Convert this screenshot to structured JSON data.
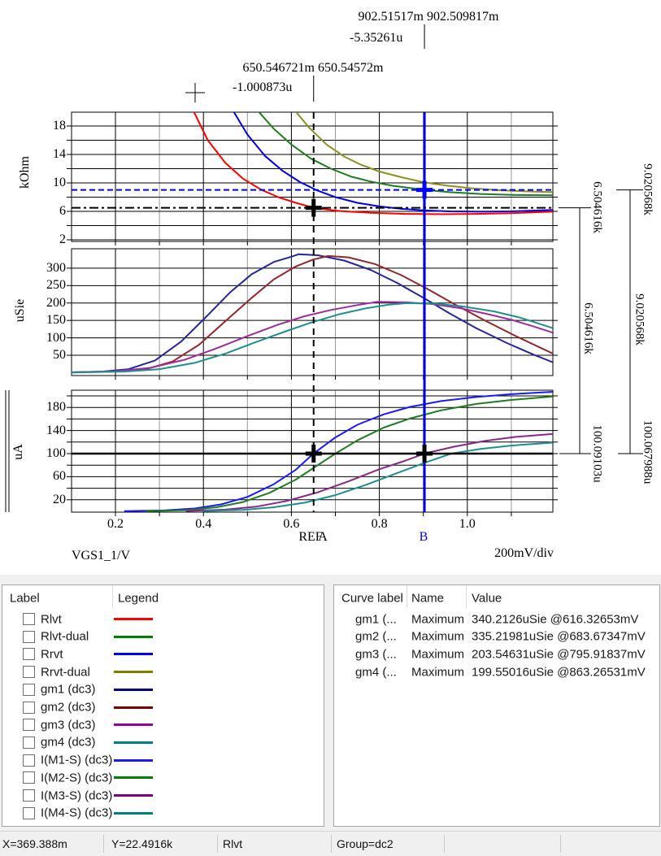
{
  "cursor_annotations": {
    "b_x_values": "902.51517m 902.509817m",
    "b_x_delta": "-5.35261u",
    "ref_x_values": "650.546721m 650.54572m",
    "ref_x_delta": "-1.000873u"
  },
  "cursor_labels": {
    "ref": "REF",
    "a": "A",
    "b": "B"
  },
  "axis_readouts": [
    "6.504616k",
    "9.020568k",
    "6.504616k",
    "9.020568k",
    "100.09103u",
    "100.067988u"
  ],
  "x_axis": {
    "label": "VGS1_1/V",
    "per_division": "200mV/div",
    "ticks": [
      "0.2",
      "0.4",
      "0.6",
      "0.8",
      "1.0"
    ]
  },
  "cursors": {
    "ref_x": 0.650546,
    "b_x": 0.902515,
    "top_ref_y": 6.504616,
    "top_b_y": 9.020568,
    "bottom_y": 100.08
  },
  "chart_data": [
    {
      "type": "line",
      "ylabel": "kOhm",
      "yticks": [
        "18",
        "14",
        "10",
        "6",
        "2"
      ],
      "ylim": [
        1.8,
        20.2
      ],
      "xlim": [
        0.1,
        1.194
      ],
      "grid": "on",
      "series": [
        {
          "name": "Rlvt",
          "color": "#ff0000",
          "points": [
            [
              0.375,
              20.4
            ],
            [
              0.41,
              16
            ],
            [
              0.45,
              12.8
            ],
            [
              0.49,
              10.6
            ],
            [
              0.53,
              9.1
            ],
            [
              0.57,
              8.0
            ],
            [
              0.61,
              7.2
            ],
            [
              0.6505,
              6.5
            ],
            [
              0.71,
              6.05
            ],
            [
              0.78,
              5.8
            ],
            [
              0.86,
              5.65
            ],
            [
              0.94,
              5.6
            ],
            [
              1.02,
              5.65
            ],
            [
              1.1,
              5.75
            ],
            [
              1.194,
              5.95
            ]
          ]
        },
        {
          "name": "Rrvt",
          "color": "#0000ee",
          "points": [
            [
              0.465,
              20.4
            ],
            [
              0.5,
              16.8
            ],
            [
              0.54,
              13.8
            ],
            [
              0.58,
              11.7
            ],
            [
              0.62,
              10.1
            ],
            [
              0.66,
              8.9
            ],
            [
              0.7,
              8.0
            ],
            [
              0.75,
              7.2
            ],
            [
              0.8,
              6.7
            ],
            [
              0.85,
              6.35
            ],
            [
              0.9,
              6.15
            ],
            [
              0.96,
              6.0
            ],
            [
              1.03,
              5.95
            ],
            [
              1.1,
              6.0
            ],
            [
              1.194,
              6.2
            ]
          ]
        },
        {
          "name": "Rlvt-dual",
          "color": "#1e7d1e",
          "points": [
            [
              0.52,
              20.4
            ],
            [
              0.56,
              17.6
            ],
            [
              0.6,
              15.4
            ],
            [
              0.645,
              13.4
            ],
            [
              0.69,
              12.0
            ],
            [
              0.735,
              10.9
            ],
            [
              0.78,
              10.2
            ],
            [
              0.83,
              9.6
            ],
            [
              0.88,
              9.2
            ],
            [
              0.9025,
              9.02
            ],
            [
              0.96,
              8.7
            ],
            [
              1.03,
              8.45
            ],
            [
              1.11,
              8.3
            ],
            [
              1.194,
              8.25
            ]
          ]
        },
        {
          "name": "Rrvt-dual",
          "color": "#8f8f1e",
          "points": [
            [
              0.605,
              20.4
            ],
            [
              0.64,
              17.8
            ],
            [
              0.68,
              15.4
            ],
            [
              0.72,
              13.7
            ],
            [
              0.76,
              12.5
            ],
            [
              0.8,
              11.6
            ],
            [
              0.85,
              10.8
            ],
            [
              0.9,
              10.1
            ],
            [
              0.95,
              9.65
            ],
            [
              1.01,
              9.25
            ],
            [
              1.08,
              8.95
            ],
            [
              1.14,
              8.8
            ],
            [
              1.194,
              8.7
            ]
          ]
        }
      ]
    },
    {
      "type": "line",
      "ylabel": "uSie",
      "yticks": [
        "300",
        "250",
        "200",
        "150",
        "100",
        "50"
      ],
      "ylim": [
        0,
        365
      ],
      "xlim": [
        0.1,
        1.194
      ],
      "grid": "on",
      "series": [
        {
          "name": "gm1 (dc3)",
          "color": "#26269c",
          "points": [
            [
              0.1,
              1
            ],
            [
              0.17,
              3
            ],
            [
              0.23,
              10
            ],
            [
              0.29,
              35
            ],
            [
              0.35,
              90
            ],
            [
              0.41,
              165
            ],
            [
              0.46,
              230
            ],
            [
              0.51,
              283
            ],
            [
              0.56,
              318
            ],
            [
              0.6,
              333
            ],
            [
              0.616,
              340
            ],
            [
              0.66,
              337
            ],
            [
              0.72,
              322
            ],
            [
              0.78,
              295
            ],
            [
              0.84,
              258
            ],
            [
              0.9,
              215
            ],
            [
              0.96,
              170
            ],
            [
              1.02,
              128
            ],
            [
              1.09,
              85
            ],
            [
              1.15,
              52
            ],
            [
              1.194,
              30
            ]
          ]
        },
        {
          "name": "gm2 (dc3)",
          "color": "#96262a",
          "points": [
            [
              0.1,
              1
            ],
            [
              0.2,
              3
            ],
            [
              0.27,
              10
            ],
            [
              0.33,
              32
            ],
            [
              0.39,
              80
            ],
            [
              0.45,
              148
            ],
            [
              0.51,
              215
            ],
            [
              0.56,
              268
            ],
            [
              0.61,
              305
            ],
            [
              0.65,
              325
            ],
            [
              0.684,
              335
            ],
            [
              0.73,
              331
            ],
            [
              0.79,
              312
            ],
            [
              0.85,
              280
            ],
            [
              0.91,
              240
            ],
            [
              0.97,
              197
            ],
            [
              1.04,
              150
            ],
            [
              1.11,
              105
            ],
            [
              1.194,
              55
            ]
          ]
        },
        {
          "name": "gm3 (dc3)",
          "color": "#aузд",
          "points": []
        },
        {
          "name": "gm3 (dc3)",
          "color": "#a12aa1",
          "points": [
            [
              0.1,
              1
            ],
            [
              0.2,
              4
            ],
            [
              0.28,
              14
            ],
            [
              0.36,
              38
            ],
            [
              0.43,
              70
            ],
            [
              0.5,
              105
            ],
            [
              0.57,
              138
            ],
            [
              0.63,
              162
            ],
            [
              0.69,
              180
            ],
            [
              0.75,
              194
            ],
            [
              0.796,
              203.5
            ],
            [
              0.86,
              202
            ],
            [
              0.92,
              197
            ],
            [
              0.98,
              186
            ],
            [
              1.04,
              170
            ],
            [
              1.1,
              152
            ],
            [
              1.15,
              133
            ],
            [
              1.194,
              115
            ]
          ]
        },
        {
          "name": "gm4 (dc3)",
          "color": "#1e8f8f",
          "points": [
            [
              0.1,
              0.5
            ],
            [
              0.22,
              3
            ],
            [
              0.3,
              10
            ],
            [
              0.38,
              28
            ],
            [
              0.45,
              55
            ],
            [
              0.52,
              88
            ],
            [
              0.59,
              120
            ],
            [
              0.65,
              146
            ],
            [
              0.71,
              168
            ],
            [
              0.77,
              185
            ],
            [
              0.82,
              195
            ],
            [
              0.863,
              199.6
            ],
            [
              0.93,
              198
            ],
            [
              0.99,
              190
            ],
            [
              1.06,
              176
            ],
            [
              1.12,
              158
            ],
            [
              1.194,
              128
            ]
          ]
        }
      ]
    },
    {
      "type": "line",
      "ylabel": "uA",
      "yticks": [
        "180",
        "140",
        "100",
        "60",
        "20"
      ],
      "ylim": [
        0,
        212
      ],
      "xlim": [
        0.1,
        1.194
      ],
      "grid": "on",
      "series": [
        {
          "name": "I(M1-S) (dc3)",
          "color": "#1a1aff",
          "points": [
            [
              0.22,
              0.3
            ],
            [
              0.31,
              1.5
            ],
            [
              0.38,
              5
            ],
            [
              0.44,
              12
            ],
            [
              0.5,
              25
            ],
            [
              0.56,
              47
            ],
            [
              0.61,
              72
            ],
            [
              0.6505,
              100.1
            ],
            [
              0.7,
              128
            ],
            [
              0.75,
              150
            ],
            [
              0.81,
              168
            ],
            [
              0.87,
              181
            ],
            [
              0.94,
              191
            ],
            [
              1.02,
              198
            ],
            [
              1.1,
              203
            ],
            [
              1.194,
              207
            ]
          ]
        },
        {
          "name": "I(M2-S) (dc3)",
          "color": "#1e7d1e",
          "points": [
            [
              0.27,
              0.3
            ],
            [
              0.36,
              2
            ],
            [
              0.43,
              7
            ],
            [
              0.49,
              16
            ],
            [
              0.55,
              32
            ],
            [
              0.61,
              55
            ],
            [
              0.66,
              80
            ],
            [
              0.7,
              100
            ],
            [
              0.75,
              123
            ],
            [
              0.81,
              145
            ],
            [
              0.87,
              161
            ],
            [
              0.94,
              175
            ],
            [
              1.02,
              186
            ],
            [
              1.1,
              193
            ],
            [
              1.194,
              199
            ]
          ]
        },
        {
          "name": "I(M3-S) (dc3)",
          "color": "#8c268c",
          "points": [
            [
              0.36,
              0.5
            ],
            [
              0.45,
              3
            ],
            [
              0.52,
              8
            ],
            [
              0.59,
              18
            ],
            [
              0.66,
              33
            ],
            [
              0.73,
              52
            ],
            [
              0.8,
              73
            ],
            [
              0.86,
              88
            ],
            [
              0.9025,
              100.1
            ],
            [
              0.97,
              112
            ],
            [
              1.04,
              122
            ],
            [
              1.11,
              129
            ],
            [
              1.194,
              134
            ]
          ]
        },
        {
          "name": "I(M4-S) (dc3)",
          "color": "#1e8f8f",
          "points": [
            [
              0.4,
              0.5
            ],
            [
              0.49,
              2.5
            ],
            [
              0.56,
              7
            ],
            [
              0.63,
              15
            ],
            [
              0.7,
              28
            ],
            [
              0.77,
              46
            ],
            [
              0.84,
              66
            ],
            [
              0.91,
              86
            ],
            [
              0.9635,
              100
            ],
            [
              1.03,
              108
            ],
            [
              1.1,
              114
            ],
            [
              1.194,
              119
            ]
          ]
        }
      ]
    }
  ],
  "legend_panel": {
    "headers": [
      "Label",
      "Legend"
    ],
    "items": [
      {
        "label": "Rlvt",
        "color": "#ff0000"
      },
      {
        "label": "Rlvt-dual",
        "color": "#008000"
      },
      {
        "label": "Rrvt",
        "color": "#0000ee"
      },
      {
        "label": "Rrvt-dual",
        "color": "#808000"
      },
      {
        "label": "gm1 (dc3)",
        "color": "#000080"
      },
      {
        "label": "gm2 (dc3)",
        "color": "#800000"
      },
      {
        "label": "gm3 (dc3)",
        "color": "#990099"
      },
      {
        "label": "gm4 (dc3)",
        "color": "#008080"
      },
      {
        "label": "I(M1-S) (dc3)",
        "color": "#1a1aff"
      },
      {
        "label": "I(M2-S) (dc3)",
        "color": "#008000"
      },
      {
        "label": "I(M3-S) (dc3)",
        "color": "#800080"
      },
      {
        "label": "I(M4-S) (dc3)",
        "color": "#008080"
      }
    ]
  },
  "measurement_panel": {
    "headers": [
      "Curve label",
      "Name",
      "Value"
    ],
    "rows": [
      {
        "curve": "gm1 (...",
        "name": "Maximum",
        "value": "340.2126uSie @616.32653mV"
      },
      {
        "curve": "gm2 (...",
        "name": "Maximum",
        "value": "335.21981uSie @683.67347mV"
      },
      {
        "curve": "gm3 (...",
        "name": "Maximum",
        "value": "203.54631uSie @795.91837mV"
      },
      {
        "curve": "gm4 (...",
        "name": "Maximum",
        "value": "199.55016uSie @863.26531mV"
      }
    ]
  },
  "status_bar": {
    "segments": [
      "X=369.388m",
      "Y=22.4916k",
      "Rlvt",
      "Group=dc2",
      "",
      ""
    ]
  }
}
